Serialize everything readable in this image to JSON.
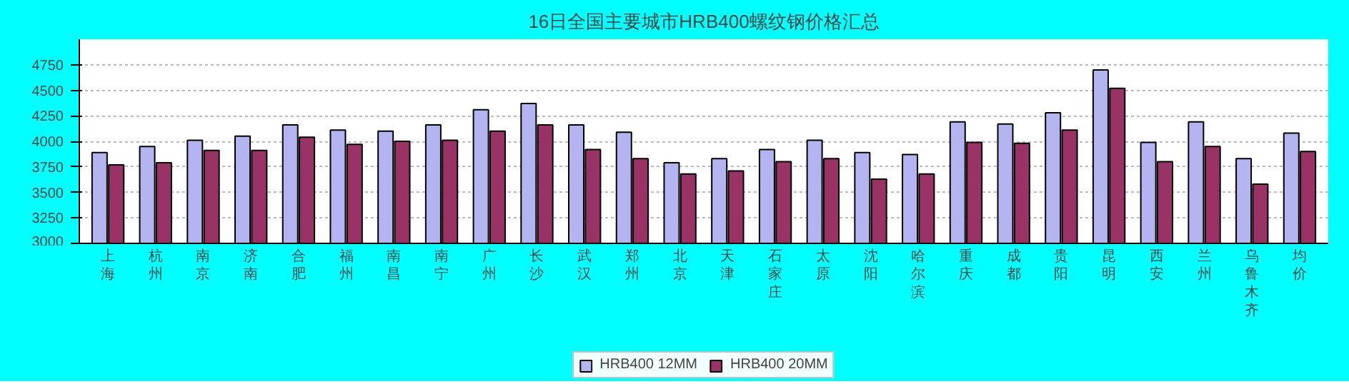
{
  "chart_data": {
    "type": "bar",
    "title": "16日全国主要城市HRB400螺纹钢价格汇总",
    "categories": [
      "上海",
      "杭州",
      "南京",
      "济南",
      "合肥",
      "福州",
      "南昌",
      "南宁",
      "广州",
      "长沙",
      "武汉",
      "郑州",
      "北京",
      "天津",
      "石家庄",
      "太原",
      "沈阳",
      "哈尔滨",
      "重庆",
      "成都",
      "贵阳",
      "昆明",
      "西安",
      "兰州",
      "乌鲁木齐",
      "均价"
    ],
    "series": [
      {
        "name": "HRB400 12MM",
        "color": "#b4b4f0",
        "values": [
          3890,
          3950,
          4010,
          4050,
          4160,
          4110,
          4100,
          4160,
          4310,
          4370,
          4160,
          4090,
          3790,
          3830,
          3920,
          4010,
          3890,
          3870,
          4190,
          4170,
          4280,
          4700,
          3990,
          4190,
          3830,
          4080
        ]
      },
      {
        "name": "HRB400 20MM",
        "color": "#993366",
        "values": [
          3770,
          3790,
          3910,
          3910,
          4040,
          3970,
          4000,
          4010,
          4100,
          4160,
          3920,
          3830,
          3680,
          3710,
          3800,
          3830,
          3630,
          3680,
          3990,
          3980,
          4110,
          4520,
          3800,
          3950,
          3580,
          3900
        ]
      }
    ],
    "ylim": [
      3000,
      5000
    ],
    "yticks": [
      3000,
      3250,
      3500,
      3750,
      4000,
      4250,
      4500,
      4750
    ],
    "grid": "y",
    "legend": "bottom"
  }
}
